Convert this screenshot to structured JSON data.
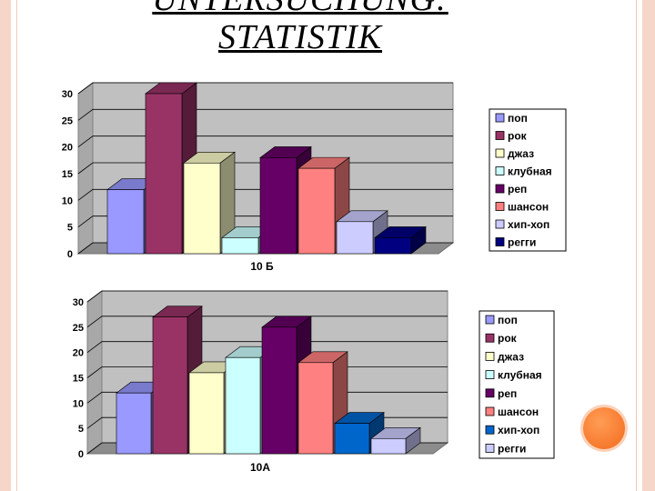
{
  "title": {
    "line1": "UNTERSUCHUNG:",
    "line2": "STATISTIK"
  },
  "chart_data": [
    {
      "type": "bar",
      "xlabel": "10 Б",
      "ylim": [
        0,
        30
      ],
      "yticks": [
        "0",
        "5",
        "10",
        "15",
        "20",
        "25",
        "30"
      ],
      "legend_position": "right",
      "grid": true,
      "series": [
        {
          "name": "поп",
          "value": 12,
          "color": "#9999ff"
        },
        {
          "name": "рок",
          "value": 30,
          "color": "#993366"
        },
        {
          "name": "джаз",
          "value": 17,
          "color": "#ffffcc"
        },
        {
          "name": "клубная",
          "value": 3,
          "color": "#ccffff"
        },
        {
          "name": "реп",
          "value": 18,
          "color": "#660066"
        },
        {
          "name": "шансон",
          "value": 16,
          "color": "#ff8080"
        },
        {
          "name": "хип-хоп",
          "value": 6,
          "color": "#ccccff"
        },
        {
          "name": "регги",
          "value": 3,
          "color": "#000080"
        }
      ]
    },
    {
      "type": "bar",
      "xlabel": "10А",
      "ylim": [
        0,
        30
      ],
      "yticks": [
        "0",
        "5",
        "10",
        "15",
        "20",
        "25",
        "30"
      ],
      "legend_position": "right",
      "grid": true,
      "series": [
        {
          "name": "поп",
          "value": 12,
          "color": "#9999ff"
        },
        {
          "name": "рок",
          "value": 27,
          "color": "#993366"
        },
        {
          "name": "джаз",
          "value": 16,
          "color": "#ffffcc"
        },
        {
          "name": "клубная",
          "value": 19,
          "color": "#ccffff"
        },
        {
          "name": "реп",
          "value": 25,
          "color": "#660066"
        },
        {
          "name": "шансон",
          "value": 18,
          "color": "#ff8080"
        },
        {
          "name": "хип-хоп",
          "value": 6,
          "color": "#0066cc"
        },
        {
          "name": "регги",
          "value": 3,
          "color": "#ccccff"
        }
      ]
    }
  ]
}
